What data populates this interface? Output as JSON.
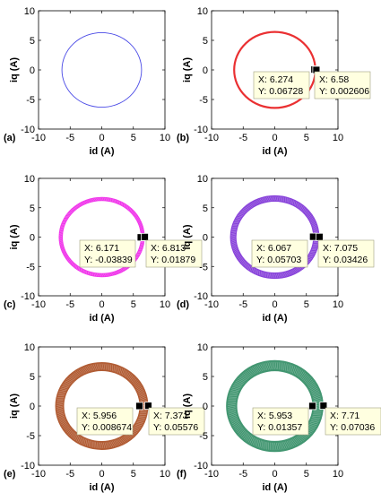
{
  "chart_data": [
    {
      "type": "scatter",
      "panel_label": "(a)",
      "xlabel": "id (A)",
      "ylabel": "iq (A)",
      "xlim": [
        -10,
        10
      ],
      "ylim": [
        -10,
        10
      ],
      "xticks": [
        -10,
        -5,
        0,
        5,
        10
      ],
      "yticks": [
        -10,
        -5,
        0,
        5,
        10
      ],
      "grid": false,
      "series": [
        {
          "color": "#4a4ae6",
          "center": [
            0,
            0
          ],
          "radius_inner": 6.3,
          "radius_outer": 6.3
        }
      ],
      "datatips": []
    },
    {
      "type": "scatter",
      "panel_label": "(b)",
      "xlabel": "id (A)",
      "ylabel": "iq (A)",
      "xlim": [
        -10,
        10
      ],
      "ylim": [
        -10,
        10
      ],
      "xticks": [
        -10,
        -5,
        0,
        5,
        10
      ],
      "yticks": [
        -10,
        -5,
        0,
        5,
        10
      ],
      "grid": false,
      "series": [
        {
          "color": "#e8191c",
          "center": [
            0,
            0
          ],
          "radius_inner": 6.27,
          "radius_outer": 6.58
        }
      ],
      "datatips": [
        {
          "x_label": "X: 6.274",
          "y_label": "Y: 0.06728",
          "x": 6.274,
          "y": 0.06728
        },
        {
          "x_label": "X: 6.58",
          "y_label": "Y: 0.002606",
          "x": 6.58,
          "y": 0.002606
        }
      ]
    },
    {
      "type": "scatter",
      "panel_label": "(c)",
      "xlabel": "id (A)",
      "ylabel": "iq (A)",
      "xlim": [
        -10,
        10
      ],
      "ylim": [
        -10,
        10
      ],
      "xticks": [
        -10,
        -5,
        0,
        5,
        10
      ],
      "yticks": [
        -10,
        -5,
        0,
        5,
        10
      ],
      "grid": false,
      "series": [
        {
          "color": "#ee1ee8",
          "center": [
            0,
            0
          ],
          "radius_inner": 6.17,
          "radius_outer": 6.81
        }
      ],
      "datatips": [
        {
          "x_label": "X: 6.171",
          "y_label": "Y: -0.03839",
          "x": 6.171,
          "y": -0.03839
        },
        {
          "x_label": "X: 6.813",
          "y_label": "Y: 0.01879",
          "x": 6.813,
          "y": 0.01879
        }
      ]
    },
    {
      "type": "scatter",
      "panel_label": "(d)",
      "xlabel": "id (A)",
      "ylabel": "iq (A)",
      "xlim": [
        -10,
        10
      ],
      "ylim": [
        -10,
        10
      ],
      "xticks": [
        -10,
        -5,
        0,
        5,
        10
      ],
      "yticks": [
        -10,
        -5,
        0,
        5,
        10
      ],
      "grid": false,
      "series": [
        {
          "color": "#7b2fd6",
          "center": [
            0,
            0
          ],
          "radius_inner": 6.07,
          "radius_outer": 7.08
        }
      ],
      "datatips": [
        {
          "x_label": "X: 6.067",
          "y_label": "Y: 0.05703",
          "x": 6.067,
          "y": 0.05703
        },
        {
          "x_label": "X: 7.075",
          "y_label": "Y: 0.03426",
          "x": 7.075,
          "y": 0.03426
        }
      ]
    },
    {
      "type": "scatter",
      "panel_label": "(e)",
      "xlabel": "id (A)",
      "ylabel": "iq (A)",
      "xlim": [
        -10,
        10
      ],
      "ylim": [
        -10,
        10
      ],
      "xticks": [
        -10,
        -5,
        0,
        5,
        10
      ],
      "yticks": [
        -10,
        -5,
        0,
        5,
        10
      ],
      "grid": false,
      "series": [
        {
          "color": "#a84a1e",
          "center": [
            0,
            0
          ],
          "radius_inner": 5.96,
          "radius_outer": 7.37
        }
      ],
      "datatips": [
        {
          "x_label": "X: 5.956",
          "y_label": "Y: 0.008674",
          "x": 5.956,
          "y": 0.008674
        },
        {
          "x_label": "X: 7.371",
          "y_label": "Y: 0.05576",
          "x": 7.371,
          "y": 0.05576
        }
      ]
    },
    {
      "type": "scatter",
      "panel_label": "(f)",
      "xlabel": "id (A)",
      "ylabel": "iq (A)",
      "xlim": [
        -10,
        10
      ],
      "ylim": [
        -10,
        10
      ],
      "xticks": [
        -10,
        -5,
        0,
        5,
        10
      ],
      "yticks": [
        -10,
        -5,
        0,
        5,
        10
      ],
      "grid": false,
      "series": [
        {
          "color": "#2e8b62",
          "center": [
            0,
            0
          ],
          "radius_inner": 5.95,
          "radius_outer": 7.71
        }
      ],
      "datatips": [
        {
          "x_label": "X: 5.953",
          "y_label": "Y: 0.01357",
          "x": 5.953,
          "y": 0.01357
        },
        {
          "x_label": "X: 7.71",
          "y_label": "Y: 0.07036",
          "x": 7.71,
          "y": 0.07036
        }
      ]
    }
  ]
}
